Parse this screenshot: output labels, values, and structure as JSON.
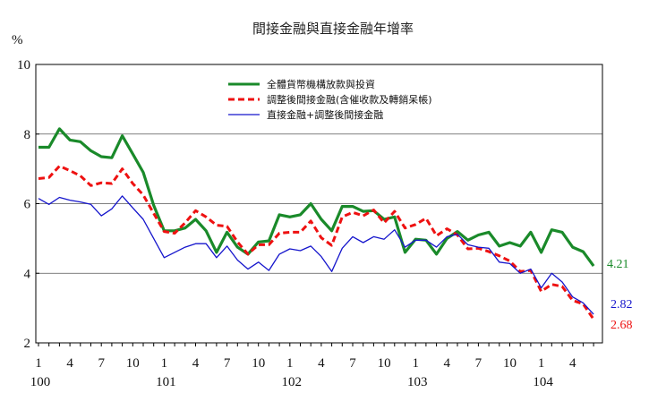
{
  "chart_data": {
    "type": "line",
    "title": "間接金融與直接金融年增率",
    "ylabel": "%",
    "ylim": [
      2,
      10
    ],
    "yticks": [
      2,
      4,
      6,
      8,
      10
    ],
    "gridlines_at": [
      4,
      6,
      8
    ],
    "x_tick_labels": [
      "1",
      "4",
      "7",
      "10",
      "1",
      "4",
      "7",
      "10",
      "1",
      "4",
      "7",
      "10",
      "1",
      "4",
      "7",
      "10",
      "1",
      "4"
    ],
    "x_tick_months": [
      0,
      3,
      6,
      9,
      12,
      15,
      18,
      21,
      24,
      27,
      30,
      33,
      36,
      39,
      42,
      45,
      48,
      51
    ],
    "year_labels": [
      "100",
      "101",
      "102",
      "103",
      "104"
    ],
    "year_label_months": [
      0,
      12,
      24,
      36,
      48
    ],
    "series": [
      {
        "name": "全體貨幣機構放款與投資",
        "color": "#1a8a2a",
        "style": "solid",
        "end_label": "4.21",
        "values": [
          7.62,
          7.62,
          8.15,
          7.83,
          7.78,
          7.52,
          7.35,
          7.32,
          7.95,
          7.43,
          6.9,
          5.95,
          5.22,
          5.22,
          5.3,
          5.55,
          5.22,
          4.6,
          5.18,
          4.75,
          4.55,
          4.9,
          4.93,
          5.68,
          5.62,
          5.68,
          6.0,
          5.55,
          5.22,
          5.92,
          5.92,
          5.78,
          5.8,
          5.55,
          5.62,
          4.6,
          4.98,
          4.95,
          4.55,
          5.0,
          5.2,
          4.95,
          5.1,
          5.18,
          4.78,
          4.88,
          4.78,
          5.18,
          4.6,
          5.25,
          5.18,
          4.75,
          4.62,
          4.21
        ]
      },
      {
        "name": "調整後間接金融(含催收款及轉銷呆帳)",
        "color": "#ee1111",
        "style": "dashed",
        "end_label": "2.68",
        "values": [
          6.72,
          6.75,
          7.08,
          6.95,
          6.8,
          6.52,
          6.6,
          6.58,
          7.0,
          6.58,
          6.25,
          5.72,
          5.2,
          5.15,
          5.45,
          5.8,
          5.62,
          5.38,
          5.35,
          4.9,
          4.55,
          4.82,
          4.82,
          5.15,
          5.18,
          5.18,
          5.5,
          5.02,
          4.8,
          5.62,
          5.75,
          5.65,
          5.82,
          5.45,
          5.78,
          5.3,
          5.4,
          5.58,
          5.08,
          5.28,
          5.1,
          4.7,
          4.72,
          4.62,
          4.5,
          4.35,
          4.05,
          4.08,
          3.48,
          3.68,
          3.62,
          3.22,
          3.12,
          2.68
        ]
      },
      {
        "name": "直接金融+調整後間接金融",
        "color": "#1515cc",
        "style": "solid",
        "end_label": "2.82",
        "values": [
          6.15,
          5.98,
          6.18,
          6.1,
          6.05,
          5.98,
          5.65,
          5.85,
          6.22,
          5.88,
          5.55,
          5.0,
          4.45,
          4.6,
          4.75,
          4.85,
          4.85,
          4.45,
          4.78,
          4.38,
          4.12,
          4.32,
          4.08,
          4.55,
          4.7,
          4.65,
          4.78,
          4.48,
          4.05,
          4.72,
          5.05,
          4.88,
          5.05,
          4.98,
          5.25,
          4.75,
          4.95,
          4.95,
          4.75,
          5.05,
          5.12,
          4.82,
          4.75,
          4.72,
          4.32,
          4.28,
          4.0,
          4.12,
          3.58,
          4.0,
          3.75,
          3.32,
          3.15,
          2.82
        ]
      }
    ]
  }
}
